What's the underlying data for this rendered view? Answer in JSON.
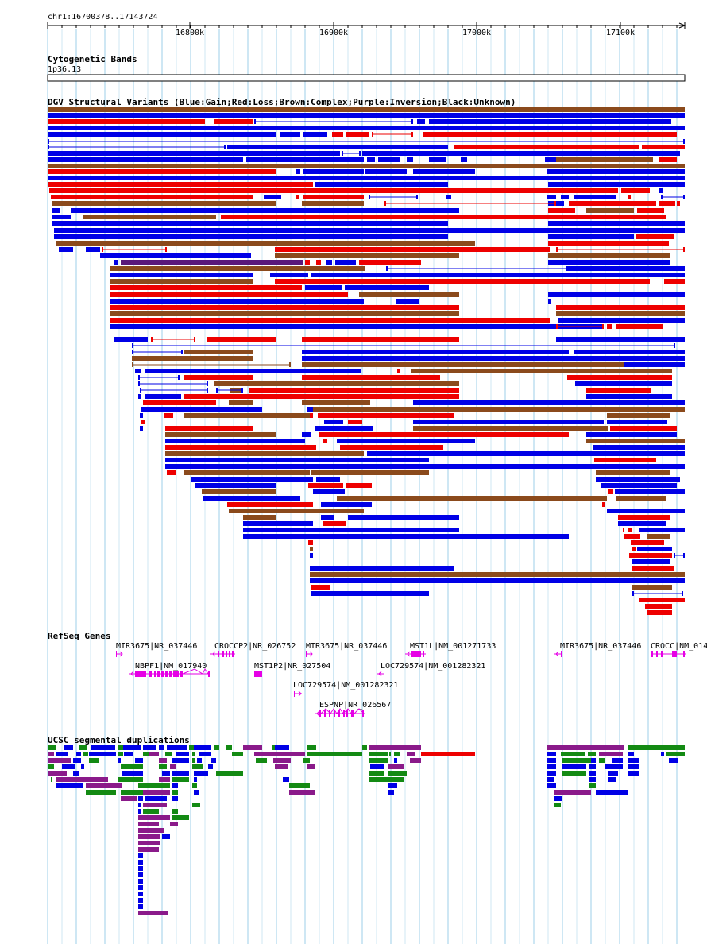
{
  "ruler": {
    "region": "chr1:16700378..17143724",
    "ticks": [
      "16800k",
      "16900k",
      "17000k",
      "17100k"
    ]
  },
  "cytoband": {
    "title": "Cytogenetic Bands",
    "band": "1p36.13"
  },
  "dgv": {
    "title": "DGV Structural Variants (Blue:Gain;Red:Loss;Brown:Complex;Purple:Inversion;Black:Unknown)",
    "legend": [
      {
        "type": "gain",
        "color": "#0000e6"
      },
      {
        "type": "loss",
        "color": "#ee0000"
      },
      {
        "type": "complex",
        "color": "#8b4a1c"
      },
      {
        "type": "inversion",
        "color": "#5a187a"
      }
    ]
  },
  "refseq": {
    "title": "RefSeq Genes",
    "color": "#e600e6",
    "genes": [
      {
        "name": "MIR3675|NR_037446"
      },
      {
        "name": "CROCCP2|NR_026752"
      },
      {
        "name": "MIR3675|NR_037446"
      },
      {
        "name": "MST1L|NM_001271733"
      },
      {
        "name": "MIR3675|NR_037446"
      },
      {
        "name": "CROCC|NM_014"
      },
      {
        "name": "NBPF1|NM_017940"
      },
      {
        "name": "MST1P2|NR_027504"
      },
      {
        "name": "LOC729574|NM_001282321"
      },
      {
        "name": "LOC729574|NM_001282321"
      },
      {
        "name": "ESPNP|NR_026567"
      }
    ]
  },
  "segdups": {
    "title": "UCSC segmental duplications",
    "colors": {
      "green": "#138a13",
      "blue": "#0000e6",
      "purple": "#8a1a8a",
      "red": "#ee0000"
    }
  }
}
